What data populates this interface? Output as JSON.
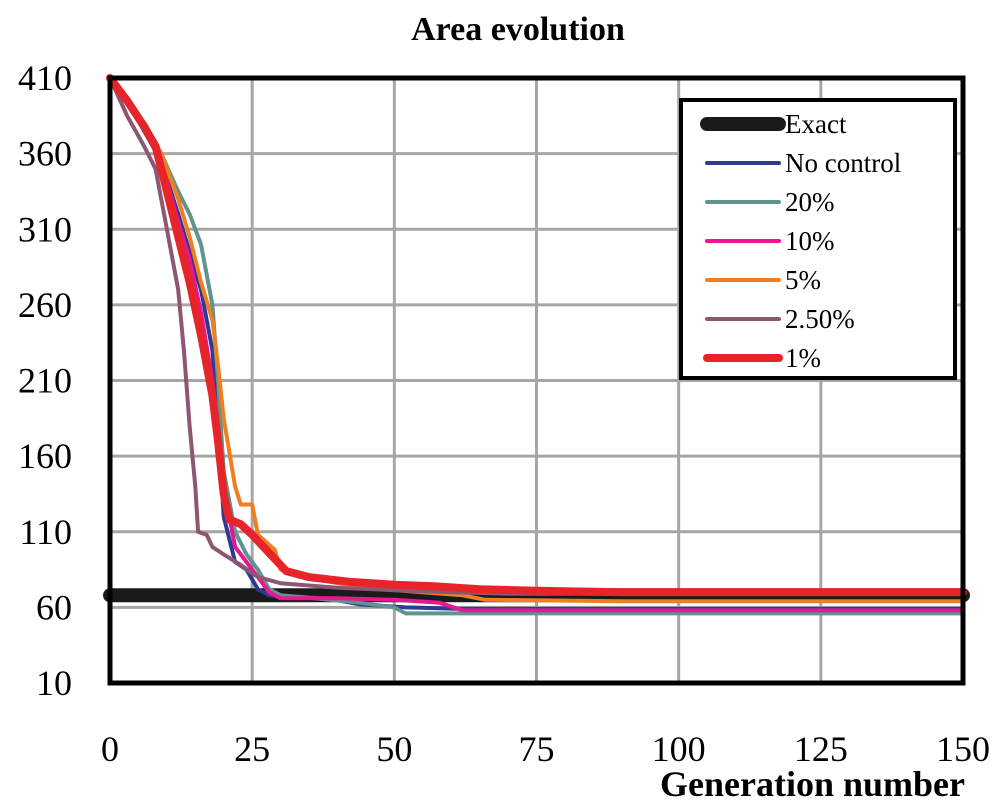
{
  "chart_data": {
    "type": "line",
    "title": "Area evolution",
    "xlabel": "Generation number",
    "ylabel": "",
    "xlim": [
      0,
      150
    ],
    "ylim": [
      10,
      410
    ],
    "x_ticks": [
      0,
      25,
      50,
      75,
      100,
      125,
      150
    ],
    "y_ticks": [
      10,
      60,
      110,
      160,
      210,
      260,
      310,
      360,
      410
    ],
    "grid": true,
    "legend_position": "top-right",
    "series": [
      {
        "name": "Exact",
        "color": "#1a1a1a",
        "width": 14,
        "points": [
          [
            0,
            68
          ],
          [
            150,
            68
          ]
        ]
      },
      {
        "name": "No control",
        "color": "#2e3a92",
        "width": 4,
        "points": [
          [
            0,
            410
          ],
          [
            3,
            395
          ],
          [
            6,
            375
          ],
          [
            9,
            355
          ],
          [
            12,
            320
          ],
          [
            14,
            295
          ],
          [
            16,
            270
          ],
          [
            18,
            230
          ],
          [
            19,
            180
          ],
          [
            20,
            120
          ],
          [
            22,
            90
          ],
          [
            24,
            85
          ],
          [
            26,
            72
          ],
          [
            28,
            68
          ],
          [
            32,
            67
          ],
          [
            38,
            66
          ],
          [
            44,
            62
          ],
          [
            52,
            60
          ],
          [
            62,
            59
          ],
          [
            80,
            59
          ],
          [
            100,
            59
          ],
          [
            125,
            59
          ],
          [
            150,
            59
          ]
        ]
      },
      {
        "name": "20%",
        "color": "#5f9490",
        "width": 4,
        "points": [
          [
            0,
            410
          ],
          [
            3,
            395
          ],
          [
            6,
            380
          ],
          [
            9,
            360
          ],
          [
            12,
            335
          ],
          [
            14,
            320
          ],
          [
            16,
            300
          ],
          [
            18,
            260
          ],
          [
            19,
            210
          ],
          [
            20,
            150
          ],
          [
            22,
            110
          ],
          [
            24,
            95
          ],
          [
            26,
            85
          ],
          [
            28,
            72
          ],
          [
            30,
            68
          ],
          [
            36,
            66
          ],
          [
            44,
            63
          ],
          [
            50,
            60
          ],
          [
            52,
            56
          ],
          [
            80,
            56
          ],
          [
            110,
            56
          ],
          [
            150,
            56
          ]
        ]
      },
      {
        "name": "10%",
        "color": "#e6178f",
        "width": 4,
        "points": [
          [
            0,
            410
          ],
          [
            3,
            395
          ],
          [
            6,
            378
          ],
          [
            9,
            355
          ],
          [
            12,
            315
          ],
          [
            14,
            290
          ],
          [
            16,
            255
          ],
          [
            18,
            210
          ],
          [
            19,
            175
          ],
          [
            20,
            140
          ],
          [
            22,
            100
          ],
          [
            24,
            90
          ],
          [
            26,
            80
          ],
          [
            28,
            70
          ],
          [
            30,
            66
          ],
          [
            40,
            66
          ],
          [
            50,
            65
          ],
          [
            58,
            63
          ],
          [
            62,
            58
          ],
          [
            90,
            58
          ],
          [
            120,
            58
          ],
          [
            150,
            58
          ]
        ]
      },
      {
        "name": "5%",
        "color": "#f07f22",
        "width": 4,
        "points": [
          [
            0,
            410
          ],
          [
            3,
            395
          ],
          [
            6,
            380
          ],
          [
            9,
            360
          ],
          [
            12,
            330
          ],
          [
            14,
            305
          ],
          [
            16,
            275
          ],
          [
            18,
            250
          ],
          [
            19,
            220
          ],
          [
            20,
            185
          ],
          [
            22,
            140
          ],
          [
            23,
            128
          ],
          [
            25,
            128
          ],
          [
            26,
            108
          ],
          [
            29,
            98
          ],
          [
            30,
            85
          ],
          [
            34,
            80
          ],
          [
            40,
            76
          ],
          [
            48,
            72
          ],
          [
            55,
            70
          ],
          [
            62,
            68
          ],
          [
            66,
            65
          ],
          [
            90,
            64
          ],
          [
            120,
            64
          ],
          [
            150,
            64
          ]
        ]
      },
      {
        "name": "2.50%",
        "color": "#8d5671",
        "width": 4,
        "points": [
          [
            0,
            410
          ],
          [
            3,
            385
          ],
          [
            6,
            365
          ],
          [
            8,
            350
          ],
          [
            10,
            310
          ],
          [
            12,
            270
          ],
          [
            13,
            230
          ],
          [
            14,
            180
          ],
          [
            15,
            140
          ],
          [
            15.5,
            110
          ],
          [
            17,
            108
          ],
          [
            18,
            100
          ],
          [
            20,
            95
          ],
          [
            23,
            88
          ],
          [
            26,
            80
          ],
          [
            30,
            76
          ],
          [
            40,
            73
          ],
          [
            52,
            71
          ],
          [
            60,
            70
          ],
          [
            70,
            69
          ],
          [
            90,
            69
          ],
          [
            120,
            69
          ],
          [
            150,
            69
          ]
        ]
      },
      {
        "name": "1%",
        "color": "#e8242b",
        "width": 8,
        "points": [
          [
            0,
            410
          ],
          [
            3,
            395
          ],
          [
            6,
            378
          ],
          [
            8,
            365
          ],
          [
            10,
            335
          ],
          [
            12,
            305
          ],
          [
            14,
            275
          ],
          [
            16,
            240
          ],
          [
            18,
            200
          ],
          [
            19,
            170
          ],
          [
            20,
            135
          ],
          [
            21,
            118
          ],
          [
            23,
            115
          ],
          [
            25,
            108
          ],
          [
            27,
            100
          ],
          [
            29,
            92
          ],
          [
            31,
            84
          ],
          [
            35,
            80
          ],
          [
            42,
            77
          ],
          [
            50,
            75
          ],
          [
            57,
            74
          ],
          [
            65,
            72
          ],
          [
            75,
            71
          ],
          [
            90,
            70
          ],
          [
            120,
            70
          ],
          [
            150,
            70
          ]
        ]
      }
    ]
  }
}
